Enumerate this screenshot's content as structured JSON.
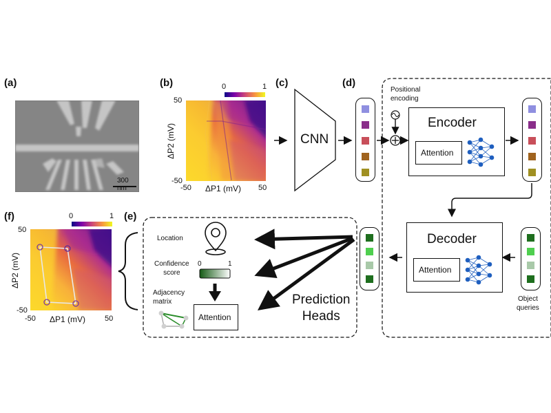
{
  "panels": {
    "a": "(a)",
    "b": "(b)",
    "c": "(c)",
    "d": "(d)",
    "e": "(e)",
    "f": "(f)"
  },
  "sem": {
    "scalebar": "300 nm"
  },
  "map_b": {
    "cbar_min": "0",
    "cbar_max": "1",
    "x_label": "ΔP1 (mV)",
    "y_label": "ΔP2 (mV)",
    "x_min": "-50",
    "x_max": "50",
    "y_min": "-50",
    "y_max": "50"
  },
  "map_f": {
    "cbar_min": "0",
    "cbar_max": "1",
    "x_label": "ΔP1 (mV)",
    "y_label": "ΔP2 (mV)",
    "x_min": "-50",
    "x_max": "50",
    "y_min": "-50",
    "y_max": "50"
  },
  "cnn": {
    "label": "CNN"
  },
  "transformer": {
    "positional_encoding": "Positional\nencoding",
    "encoder": "Encoder",
    "decoder": "Decoder",
    "attention": "Attention",
    "object_queries": "Object\nqueries"
  },
  "tokens": {
    "input_colors": [
      "#8f8fe0",
      "#8a2e8a",
      "#c84f5a",
      "#a0631e",
      "#a09022"
    ],
    "query_colors": [
      "#1e6e1e",
      "#4fcf4f",
      "#a9c9a9",
      "#1e6e1e"
    ]
  },
  "heads": {
    "location": "Location",
    "confidence": "Confidence\nscore",
    "conf_min": "0",
    "conf_max": "1",
    "adjacency": "Adjacency\nmatrix",
    "attention": "Attention",
    "prediction_heads": "Prediction\nHeads"
  },
  "colors": {
    "low": "#0d0887",
    "mid": "#cc4778",
    "high": "#f0f921",
    "graph_green": "#2a8c2a"
  }
}
